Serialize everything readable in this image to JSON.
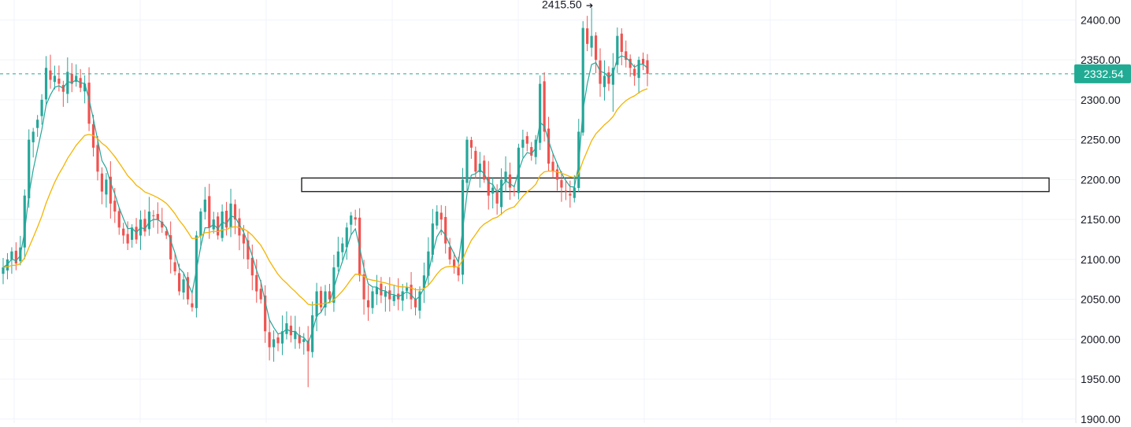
{
  "chart_data": {
    "type": "candlestick",
    "title": "",
    "xlabel": "",
    "ylabel": "",
    "ylim": [
      1895,
      2425
    ],
    "y_ticks": [
      1900,
      1950,
      2000,
      2050,
      2100,
      2150,
      2200,
      2250,
      2300,
      2350,
      2400
    ],
    "y_tick_labels": [
      "1900.00",
      "1950.00",
      "2000.00",
      "2050.00",
      "2100.00",
      "2150.00",
      "2200.00",
      "2250.00",
      "2300.00",
      "2350.00",
      "2400.00"
    ],
    "axis_side": "right",
    "grid": true,
    "current_price": 2332.54,
    "current_price_label": "2332.54",
    "peak_annotation": {
      "value": 2415.5,
      "label": "2415.50",
      "arrow": "➔"
    },
    "zone": {
      "low": 2185,
      "high": 2202
    },
    "colors": {
      "up": "#26a69a",
      "down": "#ef5350",
      "ma_fast": "#26a69a",
      "ma_slow": "#f5b400",
      "price_tag": "#22ab94",
      "zone_border": "#222222",
      "grid": "#f0f3fa"
    },
    "series_close": [
      2090,
      2100,
      2110,
      2095,
      2115,
      2180,
      2250,
      2260,
      2275,
      2300,
      2340,
      2325,
      2330,
      2320,
      2310,
      2335,
      2320,
      2330,
      2315,
      2320,
      2270,
      2240,
      2210,
      2185,
      2200,
      2170,
      2160,
      2140,
      2130,
      2120,
      2140,
      2125,
      2150,
      2135,
      2160,
      2155,
      2150,
      2140,
      2130,
      2100,
      2085,
      2060,
      2075,
      2050,
      2040,
      2130,
      2160,
      2175,
      2140,
      2150,
      2130,
      2160,
      2140,
      2170,
      2150,
      2130,
      2120,
      2100,
      2080,
      2060,
      2050,
      2010,
      1990,
      2000,
      1995,
      2010,
      2020,
      2005,
      2010,
      1995,
      2000,
      1985,
      2030,
      2060,
      2040,
      2060,
      2050,
      2090,
      2110,
      2120,
      2140,
      2155,
      2150,
      2080,
      2050,
      2040,
      2060,
      2065,
      2055,
      2060,
      2050,
      2055,
      2050,
      2060,
      2065,
      2050,
      2040,
      2060,
      2080,
      2110,
      2145,
      2160,
      2150,
      2120,
      2100,
      2090,
      2080,
      2200,
      2250,
      2240,
      2210,
      2220,
      2200,
      2180,
      2190,
      2170,
      2200,
      2210,
      2190,
      2185,
      2240,
      2250,
      2245,
      2230,
      2250,
      2320,
      2260,
      2220,
      2210,
      2200,
      2190,
      2185,
      2180,
      2190,
      2260,
      2390,
      2370,
      2380,
      2350,
      2320,
      2330,
      2320,
      2340,
      2380,
      2360,
      2350,
      2340,
      2330,
      2350,
      2345,
      2332.54
    ]
  }
}
